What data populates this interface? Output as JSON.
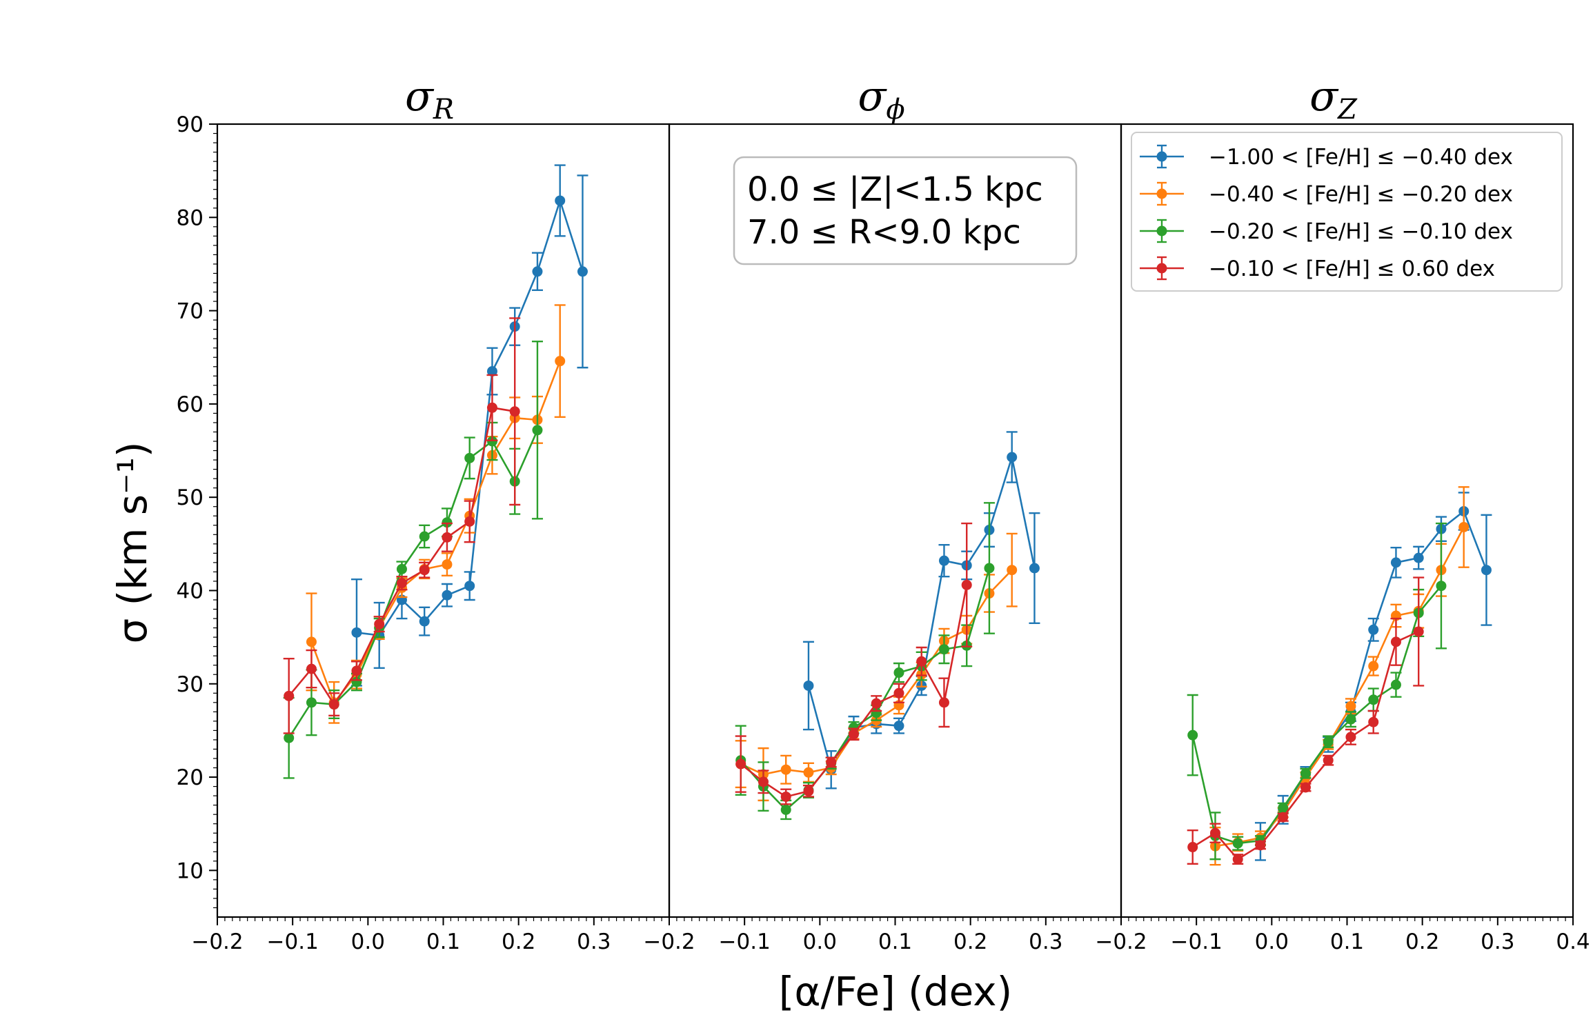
{
  "chart_data": {
    "type": "line",
    "shared_axes": {
      "xlabel": "[α/Fe] (dex)",
      "ylabel": "σ (km s⁻¹)",
      "ylim": [
        5,
        90
      ],
      "yticks": [
        "10",
        "20",
        "30",
        "40",
        "50",
        "60",
        "70",
        "80",
        "90"
      ],
      "grid": false
    },
    "legend": {
      "placement": "top-right of third panel",
      "entries": [
        "−1.00 < [Fe/H] ≤ −0.40 dex",
        "−0.40 < [Fe/H] ≤ −0.20 dex",
        "−0.20 < [Fe/H] ≤ −0.10 dex",
        "−0.10 < [Fe/H] ≤ 0.60 dex"
      ]
    },
    "annotation": {
      "line1": "0.0 ≤ |Z|<1.5 kpc",
      "line2": "7.0 ≤ R<9.0 kpc",
      "panel": 1
    },
    "colors": [
      "#1f77b4",
      "#ff7f0e",
      "#2ca02c",
      "#d62728"
    ],
    "panels": [
      {
        "title_main": "σ",
        "title_sub": "R",
        "xlim": [
          -0.2,
          0.4
        ],
        "xticks": [
          "−0.2",
          "−0.1",
          "0.0",
          "0.1",
          "0.2",
          "0.3"
        ],
        "series": [
          {
            "name": "−1.00 < [Fe/H] ≤ −0.40 dex",
            "x": [
              -0.015,
              0.015,
              0.045,
              0.075,
              0.105,
              0.135,
              0.165,
              0.195,
              0.225,
              0.255,
              0.285
            ],
            "y": [
              35.5,
              35.2,
              39.0,
              36.7,
              39.5,
              40.5,
              63.5,
              68.3,
              74.2,
              81.8,
              74.2
            ],
            "err": [
              5.7,
              3.5,
              2.0,
              1.5,
              1.2,
              1.5,
              2.5,
              2.0,
              2.0,
              3.8,
              10.3
            ]
          },
          {
            "name": "−0.40 < [Fe/H] ≤ −0.20 dex",
            "x": [
              -0.075,
              -0.045,
              -0.015,
              0.015,
              0.045,
              0.075,
              0.105,
              0.135,
              0.165,
              0.195,
              0.225,
              0.255
            ],
            "y": [
              34.5,
              28.0,
              31.0,
              36.0,
              40.3,
              42.3,
              42.8,
              48.0,
              54.5,
              58.5,
              58.3,
              64.6
            ],
            "err": [
              5.2,
              2.2,
              1.5,
              1.2,
              1.0,
              1.0,
              1.2,
              1.8,
              2.0,
              2.2,
              2.5,
              6.0
            ]
          },
          {
            "name": "−0.20 < [Fe/H] ≤ −0.10 dex",
            "x": [
              -0.105,
              -0.075,
              -0.045,
              -0.015,
              0.015,
              0.045,
              0.075,
              0.105,
              0.135,
              0.165,
              0.195,
              0.225
            ],
            "y": [
              24.2,
              28.0,
              27.8,
              30.2,
              36.0,
              42.3,
              45.8,
              47.3,
              54.2,
              56.0,
              51.7,
              57.2
            ],
            "err": [
              4.3,
              3.5,
              1.5,
              0.9,
              1.0,
              0.8,
              1.2,
              1.5,
              2.2,
              2.0,
              3.5,
              9.5
            ]
          },
          {
            "name": "−0.10 < [Fe/H] ≤ 0.60 dex",
            "x": [
              -0.105,
              -0.075,
              -0.045,
              -0.015,
              0.015,
              0.045,
              0.075,
              0.105,
              0.135,
              0.165,
              0.195
            ],
            "y": [
              28.7,
              31.6,
              27.8,
              31.4,
              36.4,
              40.8,
              42.2,
              45.7,
              47.4,
              59.6,
              59.2
            ],
            "err": [
              4.0,
              2.0,
              1.2,
              1.0,
              0.8,
              0.7,
              0.8,
              1.5,
              2.2,
              3.5,
              10.0
            ]
          }
        ]
      },
      {
        "title_main": "σ",
        "title_sub": "ϕ",
        "xlim": [
          -0.2,
          0.4
        ],
        "xticks": [
          "−0.2",
          "−0.1",
          "0.0",
          "0.1",
          "0.2",
          "0.3"
        ],
        "series": [
          {
            "name": "−1.00 < [Fe/H] ≤ −0.40 dex",
            "x": [
              -0.015,
              0.015,
              0.045,
              0.075,
              0.105,
              0.135,
              0.165,
              0.195,
              0.225,
              0.255,
              0.285
            ],
            "y": [
              29.8,
              20.8,
              25.3,
              25.7,
              25.5,
              29.8,
              43.2,
              42.7,
              46.5,
              54.3,
              42.4
            ],
            "err": [
              4.7,
              2.0,
              1.2,
              1.0,
              0.8,
              1.0,
              1.7,
              1.5,
              1.8,
              2.7,
              5.9
            ]
          },
          {
            "name": "−0.40 < [Fe/H] ≤ −0.20 dex",
            "x": [
              -0.105,
              -0.075,
              -0.045,
              -0.015,
              0.015,
              0.045,
              0.075,
              0.105,
              0.135,
              0.165,
              0.195,
              0.225,
              0.255
            ],
            "y": [
              21.4,
              20.3,
              20.8,
              20.5,
              21.0,
              24.7,
              26.1,
              27.7,
              31.0,
              34.6,
              35.8,
              39.7,
              42.2
            ],
            "err": [
              2.5,
              2.8,
              1.5,
              1.0,
              0.7,
              0.6,
              0.7,
              0.9,
              1.3,
              1.3,
              1.5,
              2.0,
              3.9
            ]
          },
          {
            "name": "−0.20 < [Fe/H] ≤ −0.10 dex",
            "x": [
              -0.105,
              -0.075,
              -0.045,
              -0.015,
              0.015,
              0.045,
              0.075,
              0.105,
              0.135,
              0.165,
              0.195,
              0.225
            ],
            "y": [
              21.8,
              19.0,
              16.5,
              18.6,
              21.5,
              25.3,
              26.9,
              31.2,
              31.9,
              33.7,
              34.1,
              42.4
            ],
            "err": [
              3.7,
              2.6,
              1.0,
              0.8,
              0.6,
              0.6,
              0.8,
              1.0,
              1.5,
              1.5,
              2.2,
              7.0
            ]
          },
          {
            "name": "−0.10 < [Fe/H] ≤ 0.60 dex",
            "x": [
              -0.105,
              -0.075,
              -0.045,
              -0.015,
              0.015,
              0.045,
              0.075,
              0.105,
              0.135,
              0.165,
              0.195
            ],
            "y": [
              21.4,
              19.5,
              17.9,
              18.5,
              21.6,
              24.6,
              27.9,
              29.0,
              32.4,
              28.0,
              40.6
            ],
            "err": [
              3.0,
              1.2,
              0.8,
              0.6,
              0.5,
              0.6,
              0.8,
              1.0,
              1.5,
              2.6,
              6.6
            ]
          }
        ]
      },
      {
        "title_main": "σ",
        "title_sub": "Z",
        "xlim": [
          -0.2,
          0.4
        ],
        "xticks": [
          "−0.2",
          "−0.1",
          "0.0",
          "0.1",
          "0.2",
          "0.3",
          "0.4"
        ],
        "series": [
          {
            "name": "−1.00 < [Fe/H] ≤ −0.40 dex",
            "x": [
              -0.015,
              0.015,
              0.045,
              0.075,
              0.105,
              0.135,
              0.165,
              0.195,
              0.225,
              0.255,
              0.285
            ],
            "y": [
              13.1,
              16.5,
              20.3,
              23.5,
              27.0,
              35.8,
              43.0,
              43.5,
              46.6,
              48.5,
              42.2
            ],
            "err": [
              2.0,
              1.5,
              0.8,
              0.8,
              1.0,
              1.2,
              1.6,
              1.2,
              1.3,
              2.0,
              5.9
            ]
          },
          {
            "name": "−0.40 < [Fe/H] ≤ −0.20 dex",
            "x": [
              -0.075,
              -0.045,
              -0.015,
              0.015,
              0.045,
              0.075,
              0.105,
              0.135,
              0.165,
              0.195,
              0.225,
              0.255
            ],
            "y": [
              12.6,
              13.0,
              13.5,
              16.2,
              20.0,
              23.5,
              27.6,
              31.9,
              37.3,
              37.8,
              42.2,
              46.8
            ],
            "err": [
              2.0,
              0.9,
              0.7,
              0.5,
              0.5,
              0.5,
              0.8,
              1.0,
              1.2,
              1.8,
              2.8,
              4.3
            ]
          },
          {
            "name": "−0.20 < [Fe/H] ≤ −0.10 dex",
            "x": [
              -0.105,
              -0.075,
              -0.045,
              -0.015,
              0.015,
              0.045,
              0.075,
              0.105,
              0.135,
              0.165,
              0.195,
              0.225
            ],
            "y": [
              24.5,
              13.7,
              12.9,
              13.2,
              16.7,
              20.4,
              23.8,
              26.2,
              28.3,
              29.9,
              37.6,
              40.5
            ],
            "err": [
              4.3,
              2.5,
              0.7,
              0.5,
              0.5,
              0.5,
              0.6,
              0.8,
              1.2,
              1.3,
              2.5,
              6.7
            ]
          },
          {
            "name": "−0.10 < [Fe/H] ≤ 0.60 dex",
            "x": [
              -0.105,
              -0.075,
              -0.045,
              -0.015,
              0.015,
              0.045,
              0.075,
              0.105,
              0.135,
              0.165,
              0.195
            ],
            "y": [
              12.5,
              14.0,
              11.2,
              12.7,
              15.7,
              18.9,
              21.8,
              24.3,
              25.9,
              34.5,
              35.6
            ],
            "err": [
              1.8,
              1.0,
              0.5,
              0.4,
              0.4,
              0.4,
              0.5,
              0.8,
              1.2,
              2.5,
              5.8
            ]
          }
        ]
      }
    ]
  }
}
